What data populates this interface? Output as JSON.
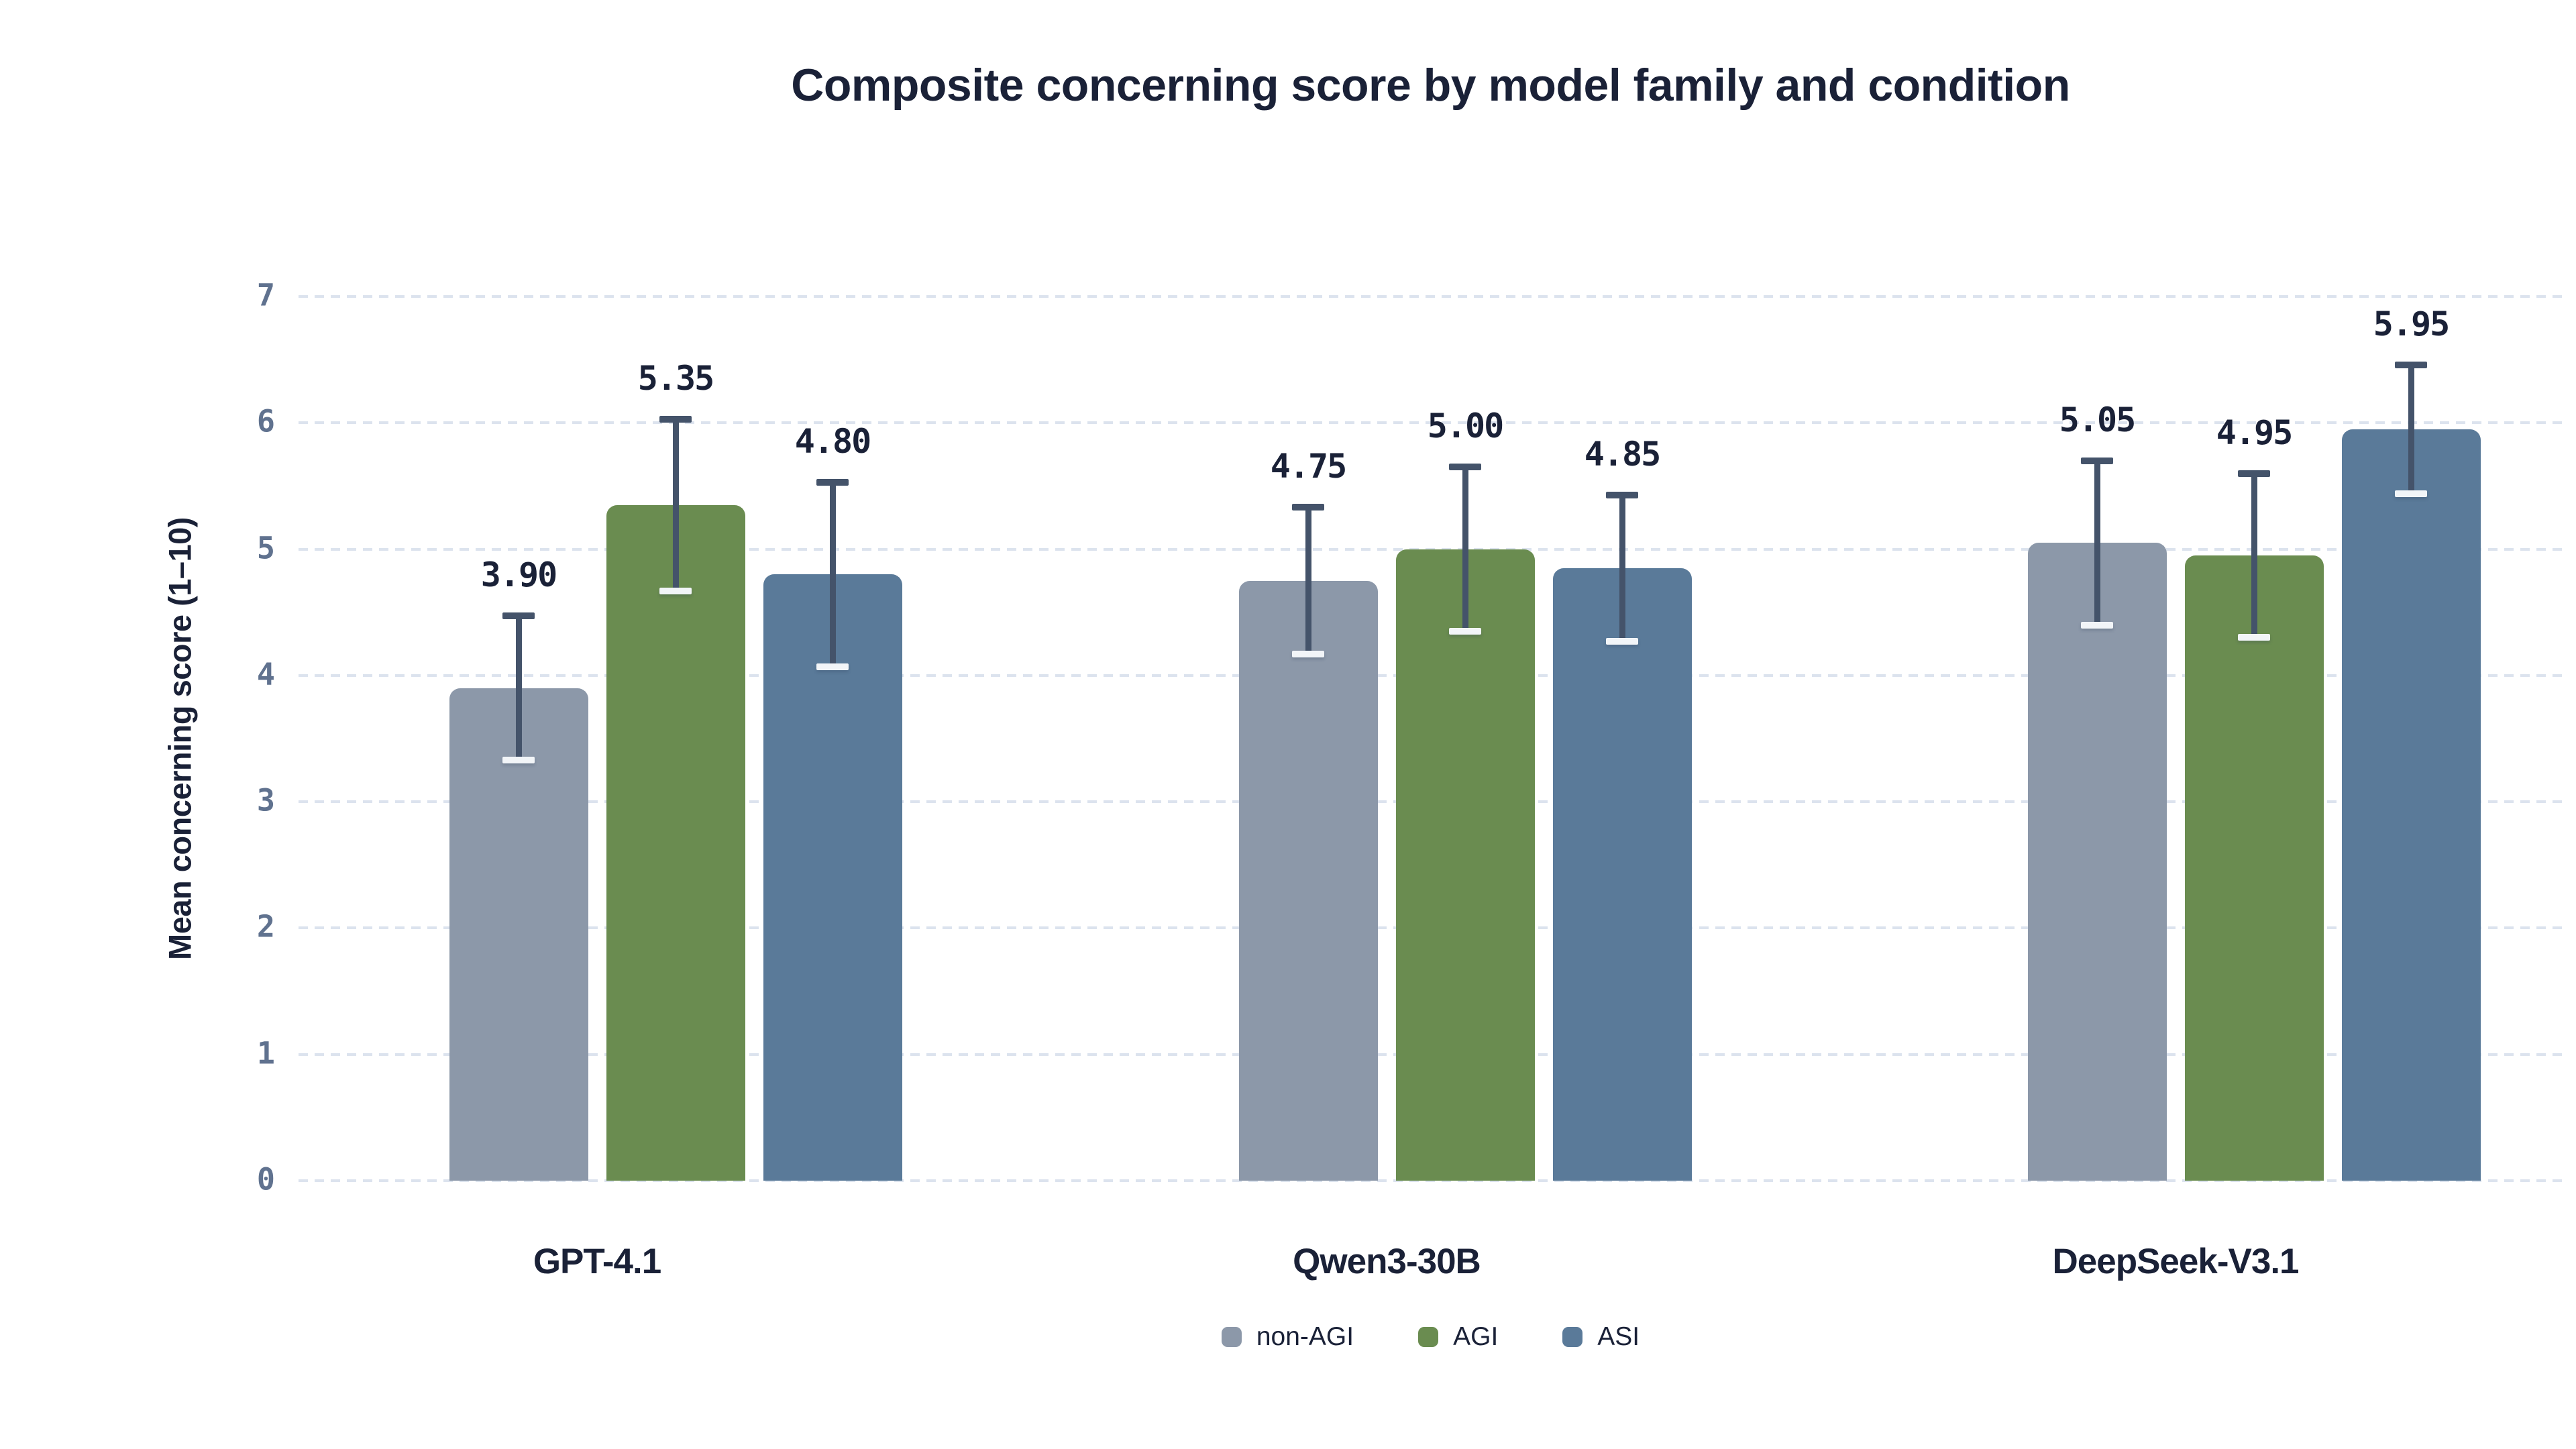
{
  "style": {
    "background": "#ffffff",
    "ink": "#1a2137",
    "tick_color": "#60728f",
    "grid_color": "#dce3ee",
    "error_color": "#44536a",
    "error_cap_bottom": "#f2f5f8"
  },
  "chart_data": {
    "type": "bar",
    "title": "Composite concerning score by model family and condition",
    "ylabel": "Mean concerning score (1–10)",
    "xlabel": "",
    "ylim": [
      0,
      7
    ],
    "yticks": [
      0,
      1,
      2,
      3,
      4,
      5,
      6,
      7
    ],
    "grid": "horizontal dashed",
    "legend_position": "bottom center",
    "categories": [
      "GPT-4.1",
      "Qwen3-30B",
      "DeepSeek-V3.1"
    ],
    "series": [
      {
        "name": "non-AGI",
        "color": "#8c98a9",
        "values": [
          3.9,
          4.75,
          5.05
        ],
        "errors": [
          0.57,
          0.58,
          0.65
        ]
      },
      {
        "name": "AGI",
        "color": "#6a8c50",
        "values": [
          5.35,
          5.0,
          4.95
        ],
        "errors": [
          0.68,
          0.65,
          0.65
        ]
      },
      {
        "name": "ASI",
        "color": "#5a7a99",
        "values": [
          4.8,
          4.85,
          5.95
        ],
        "errors": [
          0.73,
          0.58,
          0.51
        ]
      }
    ],
    "value_label_format": "0.00"
  }
}
